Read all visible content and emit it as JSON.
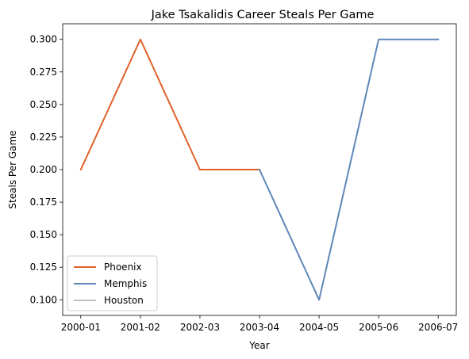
{
  "chart_data": {
    "type": "line",
    "title": "Jake Tsakalidis Career Steals Per Game",
    "xlabel": "Year",
    "ylabel": "Steals Per Game",
    "categories": [
      "2000-01",
      "2001-02",
      "2002-03",
      "2003-04",
      "2004-05",
      "2005-06",
      "2006-07"
    ],
    "yticks": [
      "0.100",
      "0.125",
      "0.150",
      "0.175",
      "0.200",
      "0.225",
      "0.250",
      "0.275",
      "0.300"
    ],
    "ylim": [
      0.088,
      0.312
    ],
    "grid": false,
    "legend_position": "lower-left",
    "series": [
      {
        "name": "Phoenix",
        "color": "#e0622a",
        "points": [
          {
            "x": "2000-01",
            "y": 0.2
          },
          {
            "x": "2001-02",
            "y": 0.3
          },
          {
            "x": "2002-03",
            "y": 0.2
          },
          {
            "x": "2003-04",
            "y": 0.2
          }
        ]
      },
      {
        "name": "Memphis",
        "color": "#5f87b8",
        "points": [
          {
            "x": "2003-04",
            "y": 0.2
          },
          {
            "x": "2004-05",
            "y": 0.1
          },
          {
            "x": "2005-06",
            "y": 0.3
          },
          {
            "x": "2006-07",
            "y": 0.3
          }
        ]
      },
      {
        "name": "Houston",
        "color": "#c0c0c0",
        "points": []
      }
    ]
  }
}
